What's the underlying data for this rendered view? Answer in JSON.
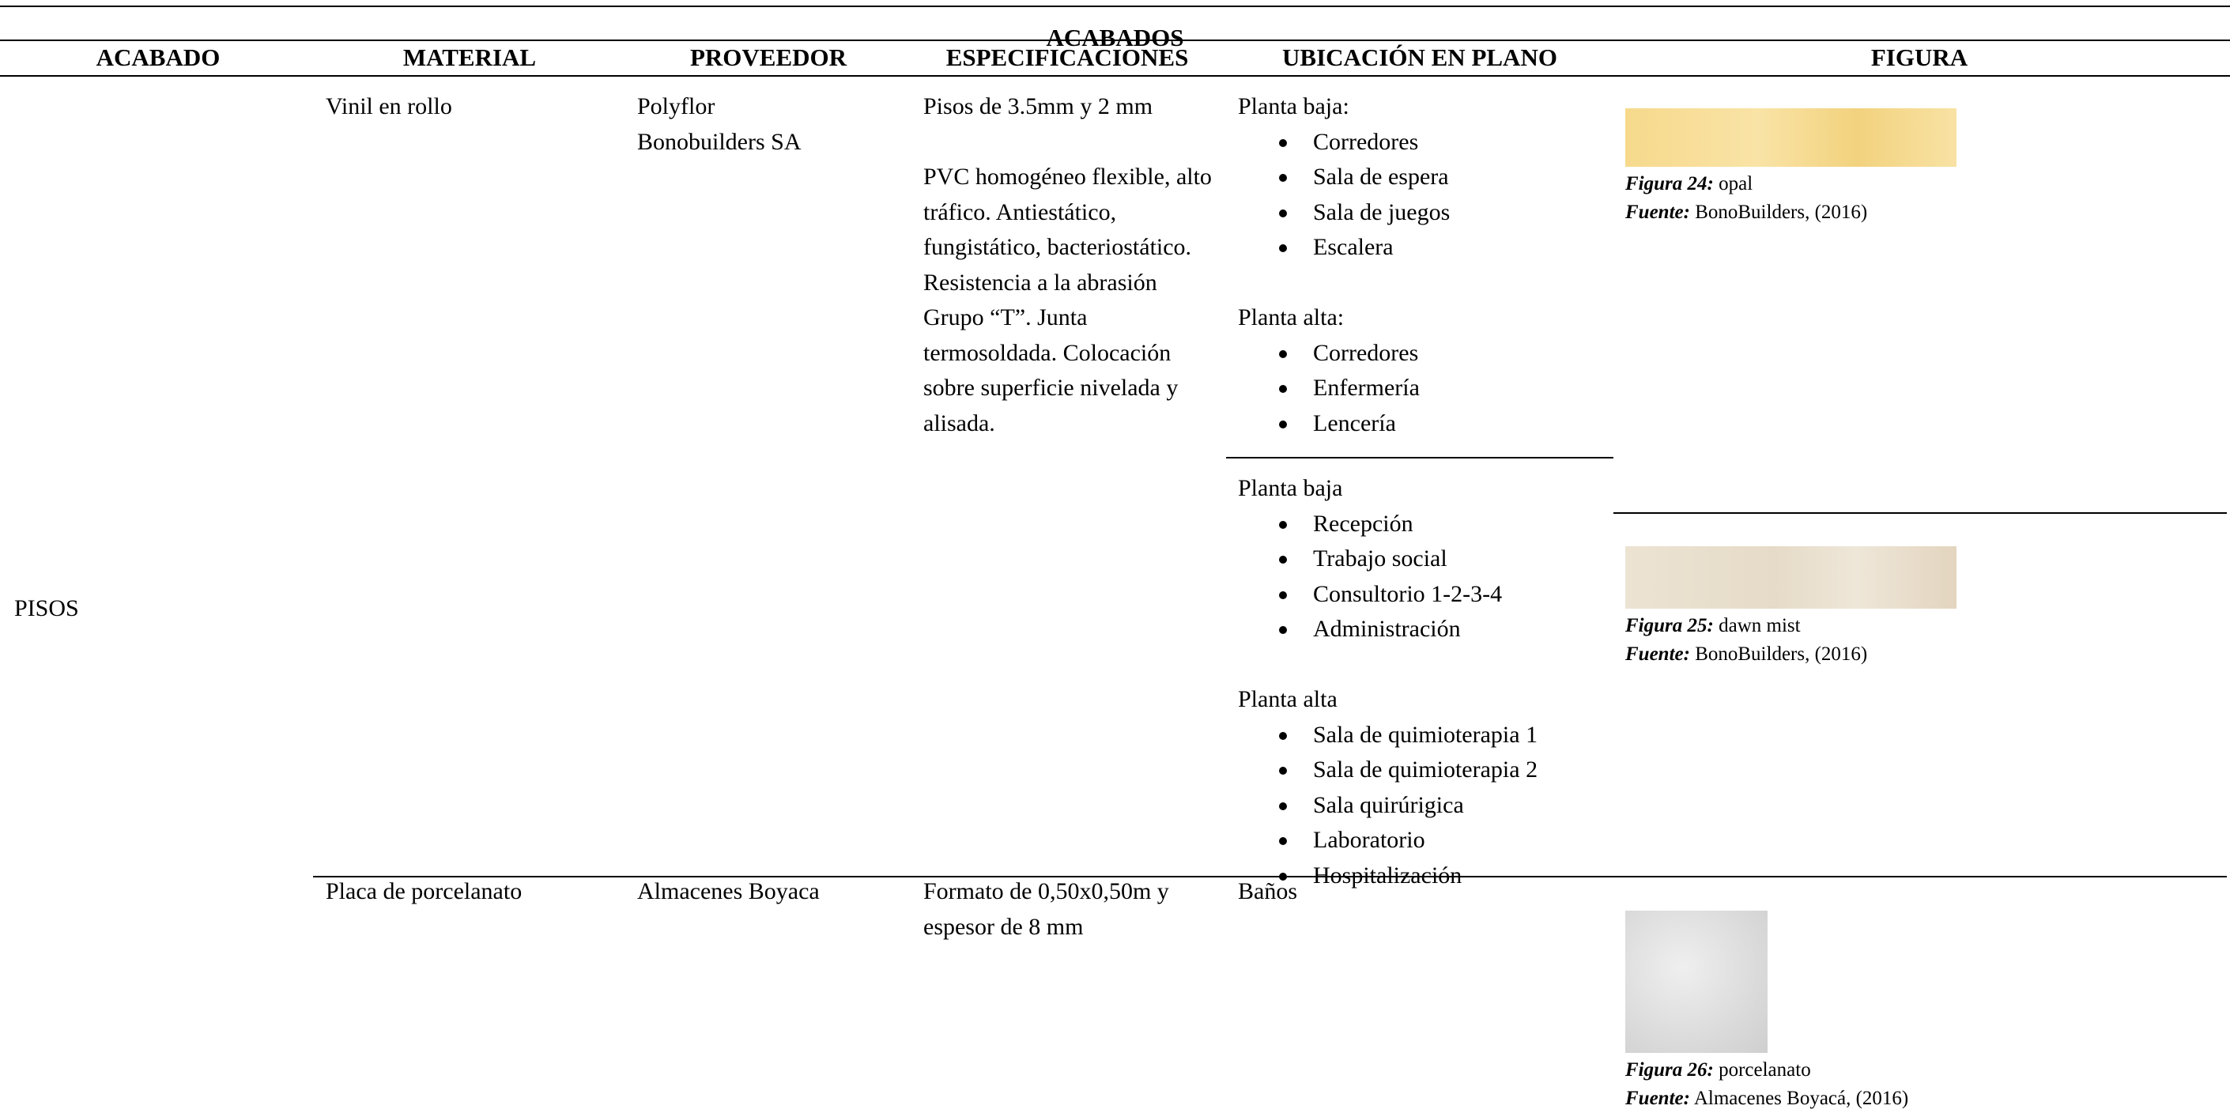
{
  "table": {
    "title": "ACABADOS",
    "columns": [
      "ACABADO",
      "MATERIAL",
      "PROVEEDOR",
      "ESPECIFICACIONES",
      "UBICACIÓN EN PLANO",
      "FIGURA"
    ],
    "acabado": "PISOS",
    "rows": [
      {
        "material": "Vinil en rollo",
        "proveedor": [
          "Polyflor",
          "Bonobuilders SA"
        ],
        "especificaciones": [
          "Pisos de 3.5mm y 2 mm",
          "PVC homogéneo flexible, alto tráfico. Antiestático, fungistático, bacteriostático. Resistencia a la abrasión Grupo “T”. Junta termosoldada. Colocación sobre superficie nivelada y alisada."
        ],
        "blocks": [
          {
            "groups": [
              {
                "label": "Planta baja:",
                "items": [
                  "Corredores",
                  "Sala de espera",
                  "Sala de juegos",
                  "Escalera"
                ]
              },
              {
                "label": "Planta alta:",
                "items": [
                  "Corredores",
                  "Enfermería",
                  "Lencería"
                ]
              }
            ],
            "figure": {
              "number": "Figura 24:",
              "caption": "opal",
              "source_label": "Fuente:",
              "source": "BonoBuilders, (2016)"
            }
          },
          {
            "groups": [
              {
                "label": "Planta baja",
                "items": [
                  "Recepción",
                  "Trabajo social",
                  "Consultorio 1-2-3-4",
                  "Administración"
                ]
              },
              {
                "label": "Planta alta",
                "items": [
                  "Sala de quimioterapia  1",
                  "Sala de quimioterapia  2",
                  "Sala quirúrigica",
                  "Laboratorio",
                  "Hospitalización"
                ]
              }
            ],
            "figure": {
              "number": "Figura 25:",
              "caption": "dawn mist",
              "source_label": "Fuente:",
              "source": "BonoBuilders, (2016)"
            }
          }
        ]
      },
      {
        "material": "Placa de porcelanato",
        "proveedor": [
          "Almacenes Boyaca"
        ],
        "especificaciones": [
          "Formato de 0,50x0,50m y espesor de  8 mm"
        ],
        "blocks": [
          {
            "groups": [
              {
                "label": "Baños",
                "items": []
              }
            ],
            "figure": {
              "number": "Figura 26:",
              "caption": "porcelanato",
              "source_label": "Fuente:",
              "source": "Almacenes Boyacá, (2016)"
            }
          }
        ]
      }
    ]
  }
}
